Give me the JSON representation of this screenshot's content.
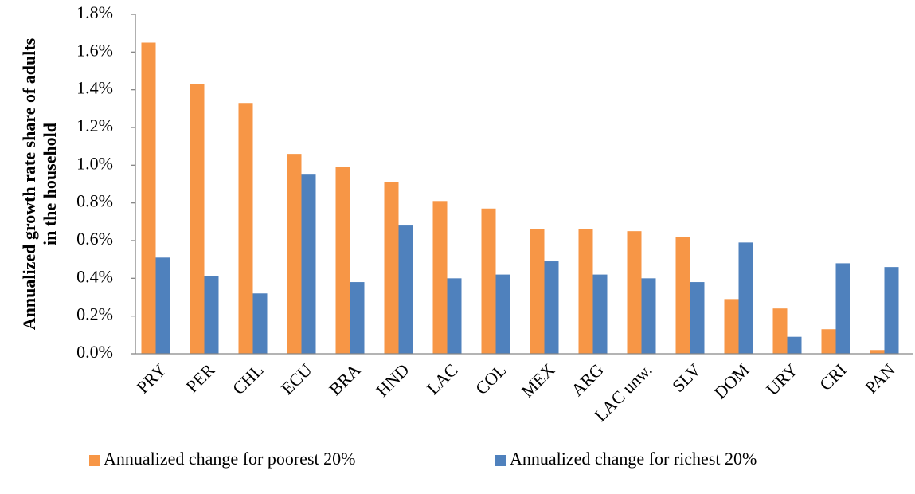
{
  "chart_data": {
    "type": "bar",
    "ylabel_lines": [
      "Annualized growth rate share of adults",
      "in the household"
    ],
    "categories": [
      "PRY",
      "PER",
      "CHL",
      "ECU",
      "BRA",
      "HND",
      "LAC",
      "COL",
      "MEX",
      "ARG",
      "LAC unw.",
      "SLV",
      "DOM",
      "URY",
      "CRI",
      "PAN"
    ],
    "series": [
      {
        "name": "Annualized change for poorest 20%",
        "color": "#f79646",
        "values": [
          1.65,
          1.43,
          1.33,
          1.06,
          0.99,
          0.91,
          0.81,
          0.77,
          0.66,
          0.66,
          0.65,
          0.62,
          0.29,
          0.24,
          0.13,
          0.02
        ]
      },
      {
        "name": "Annualized change for richest 20%",
        "color": "#4f81bd",
        "values": [
          0.51,
          0.41,
          0.32,
          0.95,
          0.38,
          0.68,
          0.4,
          0.42,
          0.49,
          0.42,
          0.4,
          0.38,
          0.59,
          0.09,
          0.48,
          0.46
        ]
      }
    ],
    "ylim": [
      0,
      1.8
    ],
    "yticks": [
      {
        "value": 0,
        "label": "0.0%"
      },
      {
        "value": 0.2,
        "label": "0.2%"
      },
      {
        "value": 0.4,
        "label": "0.4%"
      },
      {
        "value": 0.6,
        "label": "0.6%"
      },
      {
        "value": 0.8,
        "label": "0.8%"
      },
      {
        "value": 1.0,
        "label": "1.0%"
      },
      {
        "value": 1.2,
        "label": "1.2%"
      },
      {
        "value": 1.4,
        "label": "1.4%"
      },
      {
        "value": 1.6,
        "label": "1.6%"
      },
      {
        "value": 1.8,
        "label": "1.8%"
      }
    ],
    "grid": false,
    "legend": "bottom"
  }
}
